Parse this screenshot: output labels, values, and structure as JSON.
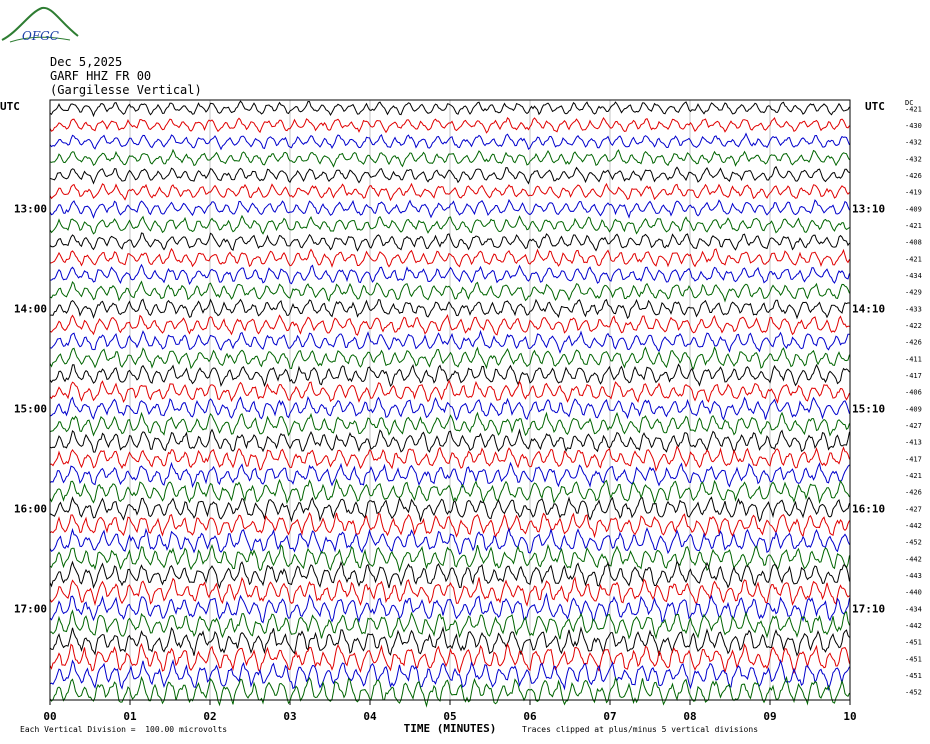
{
  "logo": {
    "text": "OFGC",
    "icon": "mountain-swoosh-icon",
    "color": "#2e7d32",
    "text_color": "#1a3fa6"
  },
  "header": {
    "date": "Dec 5,2025",
    "station": "GARF HHZ FR 00",
    "location": "(Gargilesse Vertical)"
  },
  "chart_data": {
    "type": "line",
    "title": "GARF HHZ FR 00 (Gargilesse Vertical)",
    "date": "Dec 5,2025",
    "xlabel": "TIME (MINUTES)",
    "x_ticks": [
      "00",
      "01",
      "02",
      "03",
      "04",
      "05",
      "06",
      "07",
      "08",
      "09",
      "10"
    ],
    "xlim": [
      0,
      10
    ],
    "left_axis_label": "UTC",
    "right_axis_label": "UTC",
    "dc_label": "DC",
    "left_hour_labels": [
      "13:00",
      "14:00",
      "15:00",
      "16:00",
      "17:00"
    ],
    "right_hour_labels": [
      "13:10",
      "14:10",
      "15:10",
      "16:10",
      "17:10"
    ],
    "hour_label_rows": [
      6,
      12,
      18,
      24,
      30
    ],
    "trace_colors": [
      "#000000",
      "#e00000",
      "#0000cc",
      "#006400"
    ],
    "dc_offsets": [
      -421,
      -430,
      -432,
      -432,
      -426,
      -419,
      -409,
      -421,
      -408,
      -421,
      -434,
      -429,
      -433,
      -422,
      -426,
      -411,
      -417,
      -406,
      -409,
      -427,
      -413,
      -417,
      -421,
      -426,
      -427,
      -442,
      -452,
      -442,
      -443,
      -440,
      -434,
      -442,
      -451,
      -451,
      -451,
      -452
    ],
    "grid": true,
    "footer_left": "Each Vertical Division =  100.00 microvolts",
    "footer_right": "Traces clipped at plus/minus 5 vertical divisions"
  }
}
